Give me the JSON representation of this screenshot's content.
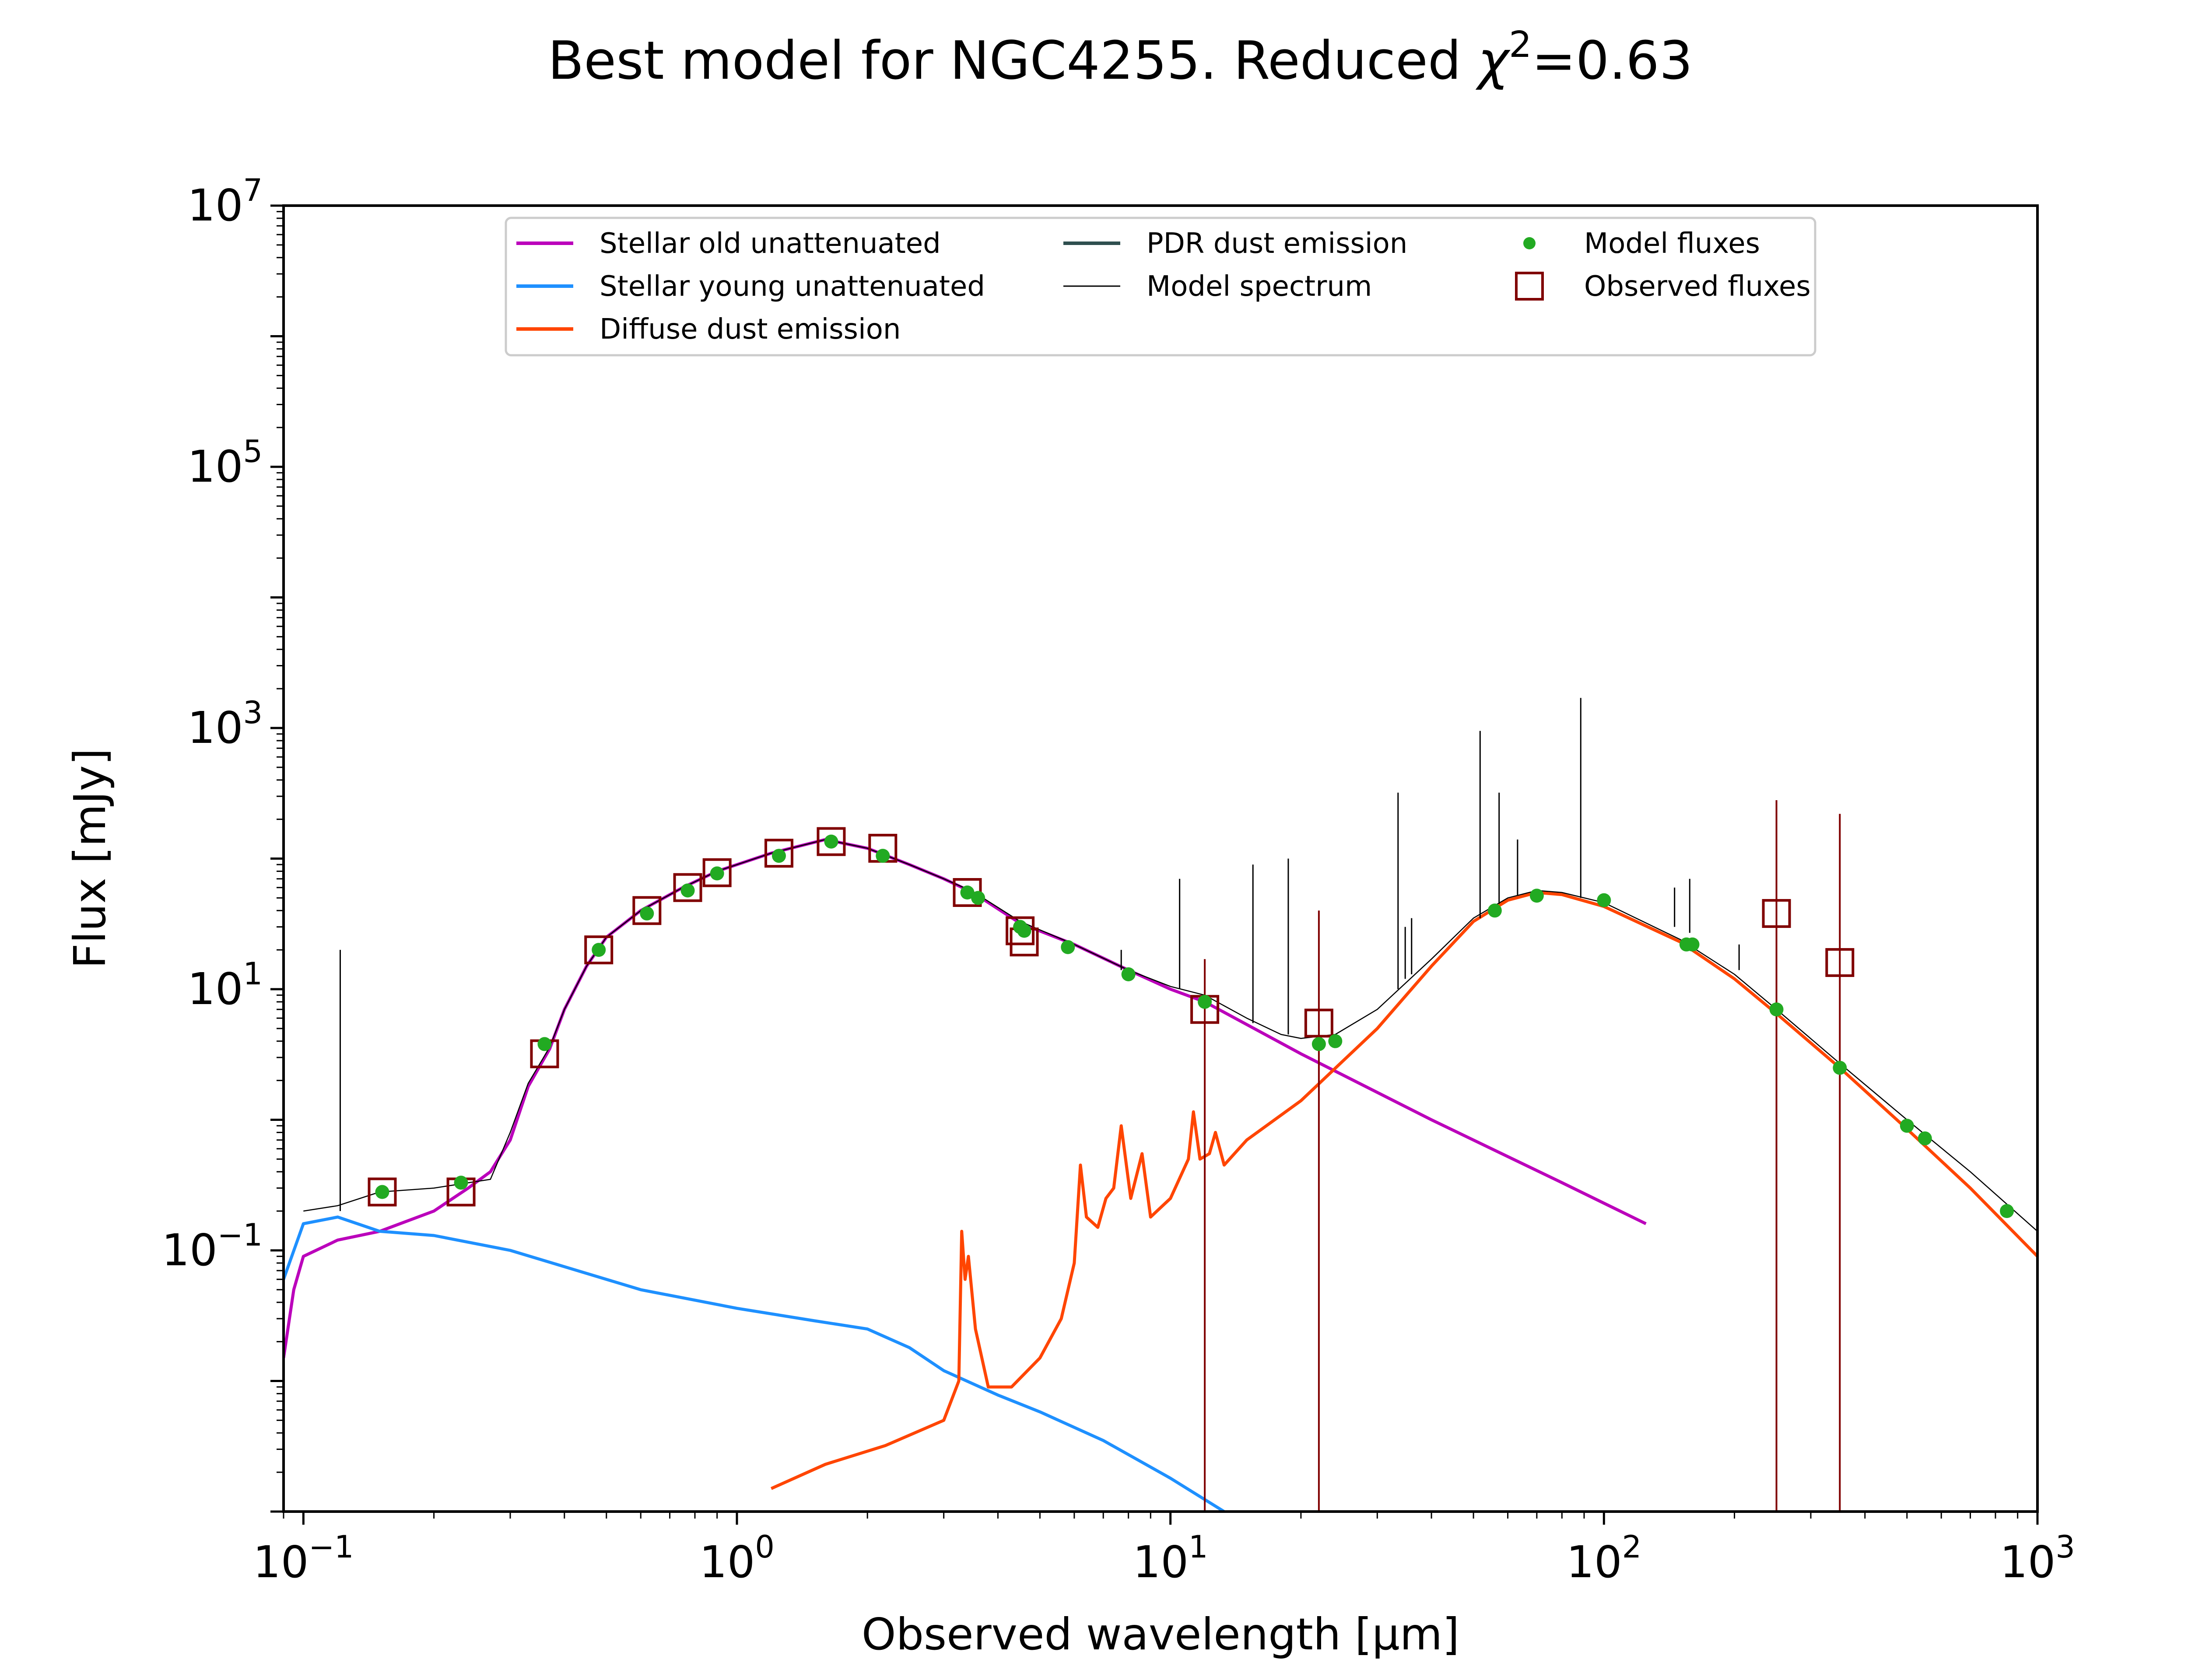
{
  "chart_data": {
    "type": "line",
    "title_prefix": "Best model for NGC4255. Reduced ",
    "title_chi": "χ",
    "title_sup": "2",
    "title_suffix": "=0.63",
    "xlabel": "Observed wavelength [μm]",
    "ylabel": "Flux [mJy]",
    "x_scale": "log",
    "y_scale": "log",
    "xlim": [
      0.09,
      1000
    ],
    "ylim": [
      0.001,
      10000000
    ],
    "grid": false,
    "legend_position": "top",
    "x_ticks": [
      {
        "value": 0.1,
        "base": "10",
        "exp": "−1"
      },
      {
        "value": 1,
        "base": "10",
        "exp": "0"
      },
      {
        "value": 10,
        "base": "10",
        "exp": "1"
      },
      {
        "value": 100,
        "base": "10",
        "exp": "2"
      },
      {
        "value": 1000,
        "base": "10",
        "exp": "3"
      }
    ],
    "y_ticks": [
      {
        "value": 0.1,
        "base": "10",
        "exp": "−1"
      },
      {
        "value": 10,
        "base": "10",
        "exp": "1"
      },
      {
        "value": 1000,
        "base": "10",
        "exp": "3"
      },
      {
        "value": 100000,
        "base": "10",
        "exp": "5"
      },
      {
        "value": 10000000,
        "base": "10",
        "exp": "7"
      }
    ],
    "legend": [
      {
        "label": "Stellar old unattenuated",
        "kind": "line",
        "color": "#bb00bb"
      },
      {
        "label": "Stellar young unattenuated",
        "kind": "line",
        "color": "#1e90ff"
      },
      {
        "label": "Diffuse dust emission",
        "kind": "line",
        "color": "#ff4500"
      },
      {
        "label": "PDR dust emission",
        "kind": "line",
        "color": "#2f4f4f"
      },
      {
        "label": "Model spectrum",
        "kind": "thin-line",
        "color": "#000000"
      },
      {
        "label": "Model fluxes",
        "kind": "dot",
        "color": "#22aa22"
      },
      {
        "label": "Observed fluxes",
        "kind": "square",
        "color": "#800000"
      }
    ],
    "series": [
      {
        "name": "Stellar old unattenuated",
        "color": "#bb00bb",
        "width": 7,
        "points": [
          [
            0.09,
            0.015
          ],
          [
            0.095,
            0.05
          ],
          [
            0.1,
            0.09
          ],
          [
            0.12,
            0.12
          ],
          [
            0.15,
            0.14
          ],
          [
            0.2,
            0.2
          ],
          [
            0.24,
            0.3
          ],
          [
            0.27,
            0.4
          ],
          [
            0.3,
            0.7
          ],
          [
            0.33,
            1.8
          ],
          [
            0.37,
            3.5
          ],
          [
            0.4,
            7
          ],
          [
            0.45,
            15
          ],
          [
            0.5,
            25
          ],
          [
            0.6,
            40
          ],
          [
            0.75,
            60
          ],
          [
            0.9,
            80
          ],
          [
            1.2,
            110
          ],
          [
            1.6,
            140
          ],
          [
            2.0,
            120
          ],
          [
            2.5,
            90
          ],
          [
            3.0,
            70
          ],
          [
            3.5,
            55
          ],
          [
            4.5,
            32
          ],
          [
            6,
            22
          ],
          [
            8,
            14
          ],
          [
            10,
            10
          ],
          [
            12,
            8
          ],
          [
            20,
            3.2
          ],
          [
            40,
            1.0
          ],
          [
            80,
            0.33
          ],
          [
            125,
            0.16
          ]
        ]
      },
      {
        "name": "Stellar young unattenuated",
        "color": "#1e90ff",
        "width": 7,
        "points": [
          [
            0.09,
            0.06
          ],
          [
            0.1,
            0.16
          ],
          [
            0.12,
            0.18
          ],
          [
            0.15,
            0.14
          ],
          [
            0.2,
            0.13
          ],
          [
            0.3,
            0.1
          ],
          [
            0.4,
            0.075
          ],
          [
            0.6,
            0.05
          ],
          [
            1.0,
            0.036
          ],
          [
            1.5,
            0.029
          ],
          [
            2.0,
            0.025
          ],
          [
            2.5,
            0.018
          ],
          [
            3.0,
            0.012
          ],
          [
            4.0,
            0.0078
          ],
          [
            5.0,
            0.0058
          ],
          [
            7.0,
            0.0035
          ],
          [
            10.0,
            0.0018
          ],
          [
            14.0,
            0.0009
          ]
        ]
      },
      {
        "name": "Diffuse dust emission",
        "color": "#ff4500",
        "width": 7,
        "points": [
          [
            1.2,
            0.0015
          ],
          [
            1.6,
            0.0023
          ],
          [
            2.2,
            0.0032
          ],
          [
            3.0,
            0.005
          ],
          [
            3.25,
            0.01
          ],
          [
            3.3,
            0.14
          ],
          [
            3.36,
            0.06
          ],
          [
            3.42,
            0.09
          ],
          [
            3.55,
            0.025
          ],
          [
            3.8,
            0.009
          ],
          [
            4.3,
            0.009
          ],
          [
            5.0,
            0.015
          ],
          [
            5.6,
            0.03
          ],
          [
            6.0,
            0.08
          ],
          [
            6.2,
            0.45
          ],
          [
            6.4,
            0.18
          ],
          [
            6.8,
            0.15
          ],
          [
            7.1,
            0.25
          ],
          [
            7.4,
            0.3
          ],
          [
            7.7,
            0.9
          ],
          [
            8.1,
            0.25
          ],
          [
            8.6,
            0.55
          ],
          [
            9.0,
            0.18
          ],
          [
            10.0,
            0.25
          ],
          [
            11.0,
            0.5
          ],
          [
            11.3,
            1.15
          ],
          [
            11.7,
            0.5
          ],
          [
            12.3,
            0.55
          ],
          [
            12.7,
            0.8
          ],
          [
            13.3,
            0.45
          ],
          [
            15.0,
            0.7
          ],
          [
            20.0,
            1.4
          ],
          [
            30.0,
            5.0
          ],
          [
            40.0,
            15
          ],
          [
            50.0,
            33
          ],
          [
            60.0,
            48
          ],
          [
            70.0,
            55
          ],
          [
            80.0,
            53
          ],
          [
            100.0,
            43
          ],
          [
            150.0,
            23
          ],
          [
            200.0,
            12
          ],
          [
            250.0,
            6.5
          ],
          [
            350.0,
            2.5
          ],
          [
            500.0,
            0.85
          ],
          [
            700.0,
            0.3
          ],
          [
            1000.0,
            0.09
          ]
        ]
      },
      {
        "name": "Model spectrum",
        "color": "#000000",
        "width": 2.5,
        "points": [
          [
            0.1,
            0.2
          ],
          [
            0.12,
            0.22
          ],
          [
            0.15,
            0.28
          ],
          [
            0.2,
            0.3
          ],
          [
            0.27,
            0.35
          ],
          [
            0.3,
            0.8
          ],
          [
            0.33,
            1.9
          ],
          [
            0.37,
            3.6
          ],
          [
            0.4,
            7
          ],
          [
            0.45,
            15
          ],
          [
            0.5,
            25
          ],
          [
            0.6,
            40
          ],
          [
            0.75,
            60
          ],
          [
            0.9,
            80
          ],
          [
            1.2,
            110
          ],
          [
            1.6,
            140
          ],
          [
            2.0,
            120
          ],
          [
            2.5,
            90
          ],
          [
            3.0,
            70
          ],
          [
            3.5,
            56
          ],
          [
            4.5,
            33
          ],
          [
            6,
            22
          ],
          [
            8,
            14
          ],
          [
            10,
            10.5
          ],
          [
            12,
            9
          ],
          [
            15,
            6
          ],
          [
            18,
            4.5
          ],
          [
            20,
            4.2
          ],
          [
            24,
            4.5
          ],
          [
            30,
            7
          ],
          [
            40,
            17
          ],
          [
            50,
            35
          ],
          [
            60,
            50
          ],
          [
            70,
            57
          ],
          [
            80,
            55
          ],
          [
            100,
            46
          ],
          [
            150,
            24
          ],
          [
            200,
            13
          ],
          [
            250,
            7
          ],
          [
            350,
            2.7
          ],
          [
            500,
            1.0
          ],
          [
            700,
            0.4
          ],
          [
            1000,
            0.14
          ]
        ]
      }
    ],
    "spikes": [
      {
        "x": 0.1216,
        "y1": 0.2,
        "y2": 20
      },
      {
        "x": 7.7,
        "y1": 14,
        "y2": 20
      },
      {
        "x": 10.5,
        "y1": 10,
        "y2": 70
      },
      {
        "x": 15.5,
        "y1": 5.5,
        "y2": 90
      },
      {
        "x": 18.7,
        "y1": 4.5,
        "y2": 100
      },
      {
        "x": 33.5,
        "y1": 10,
        "y2": 320
      },
      {
        "x": 34.8,
        "y1": 12,
        "y2": 30
      },
      {
        "x": 36,
        "y1": 13,
        "y2": 35
      },
      {
        "x": 51.8,
        "y1": 35,
        "y2": 950
      },
      {
        "x": 57.3,
        "y1": 45,
        "y2": 320
      },
      {
        "x": 63.2,
        "y1": 52,
        "y2": 140
      },
      {
        "x": 88.4,
        "y1": 50,
        "y2": 1700
      },
      {
        "x": 145.5,
        "y1": 30,
        "y2": 60
      },
      {
        "x": 157.7,
        "y1": 27,
        "y2": 70
      },
      {
        "x": 205,
        "y1": 14,
        "y2": 22
      }
    ],
    "model_fluxes": [
      [
        0.152,
        0.28
      ],
      [
        0.231,
        0.33
      ],
      [
        0.36,
        3.8
      ],
      [
        0.48,
        20
      ],
      [
        0.62,
        38
      ],
      [
        0.77,
        57
      ],
      [
        0.9,
        77
      ],
      [
        1.25,
        105
      ],
      [
        1.65,
        135
      ],
      [
        2.17,
        105
      ],
      [
        3.4,
        55
      ],
      [
        3.6,
        50
      ],
      [
        4.5,
        30
      ],
      [
        4.6,
        28
      ],
      [
        5.8,
        21
      ],
      [
        8,
        13
      ],
      [
        12,
        8
      ],
      [
        22,
        3.8
      ],
      [
        24,
        4.0
      ],
      [
        56,
        40
      ],
      [
        70,
        52
      ],
      [
        100,
        48
      ],
      [
        155,
        22
      ],
      [
        160,
        22
      ],
      [
        250,
        7
      ],
      [
        350,
        2.5
      ],
      [
        500,
        0.9
      ],
      [
        550,
        0.72
      ],
      [
        850,
        0.2
      ]
    ],
    "observed_fluxes": [
      {
        "x": 0.152,
        "y": 0.28
      },
      {
        "x": 0.231,
        "y": 0.28
      },
      {
        "x": 0.36,
        "y": 3.2
      },
      {
        "x": 0.48,
        "y": 20
      },
      {
        "x": 0.62,
        "y": 40
      },
      {
        "x": 0.77,
        "y": 60
      },
      {
        "x": 0.9,
        "y": 78
      },
      {
        "x": 1.25,
        "y": 110
      },
      {
        "x": 1.65,
        "y": 135
      },
      {
        "x": 2.17,
        "y": 120
      },
      {
        "x": 3.4,
        "y": 55
      },
      {
        "x": 4.5,
        "y": 28
      },
      {
        "x": 4.6,
        "y": 23
      },
      {
        "x": 12,
        "y": 7,
        "err_low": 0.001,
        "err_high": 17
      },
      {
        "x": 22,
        "y": 5.5,
        "err_low": 0.001,
        "err_high": 40
      },
      {
        "x": 250,
        "y": 38,
        "err_low": 0.001,
        "err_high": 280
      },
      {
        "x": 350,
        "y": 16,
        "err_low": 0.001,
        "err_high": 220
      }
    ]
  }
}
